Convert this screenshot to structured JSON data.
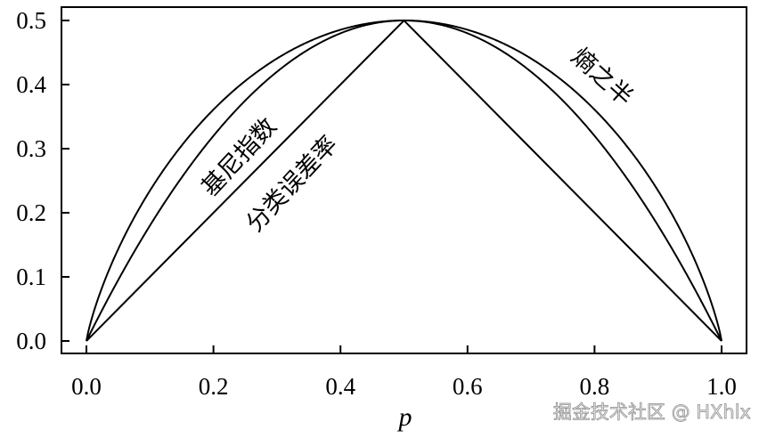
{
  "chart_data": {
    "type": "line",
    "xlabel": "p",
    "ylabel": "",
    "xlim": [
      -0.04,
      1.04
    ],
    "ylim": [
      -0.02,
      0.52
    ],
    "xticks": [
      "0.0",
      "0.2",
      "0.4",
      "0.6",
      "0.8",
      "1.0"
    ],
    "yticks": [
      "0.0",
      "0.1",
      "0.2",
      "0.3",
      "0.4",
      "0.5"
    ],
    "grid": false,
    "x": [
      0,
      0.05,
      0.1,
      0.15,
      0.2,
      0.25,
      0.3,
      0.35,
      0.4,
      0.45,
      0.5,
      0.55,
      0.6,
      0.65,
      0.7,
      0.75,
      0.8,
      0.85,
      0.9,
      0.95,
      1
    ],
    "series": [
      {
        "name": "熵之半",
        "values": [
          0,
          0.143,
          0.234,
          0.305,
          0.361,
          0.406,
          0.441,
          0.467,
          0.485,
          0.496,
          0.5,
          0.496,
          0.485,
          0.467,
          0.441,
          0.406,
          0.361,
          0.305,
          0.234,
          0.143,
          0
        ]
      },
      {
        "name": "基尼指数",
        "values": [
          0,
          0.095,
          0.18,
          0.255,
          0.32,
          0.375,
          0.42,
          0.455,
          0.48,
          0.495,
          0.5,
          0.495,
          0.48,
          0.455,
          0.42,
          0.375,
          0.32,
          0.255,
          0.18,
          0.095,
          0
        ]
      },
      {
        "name": "分类误差率",
        "values": [
          0,
          0.05,
          0.1,
          0.15,
          0.2,
          0.25,
          0.3,
          0.35,
          0.4,
          0.45,
          0.5,
          0.45,
          0.4,
          0.35,
          0.3,
          0.25,
          0.2,
          0.15,
          0.1,
          0.05,
          0
        ]
      }
    ],
    "line_color": "#000000"
  },
  "watermark": "掘金技术社区 @ HXhlx"
}
